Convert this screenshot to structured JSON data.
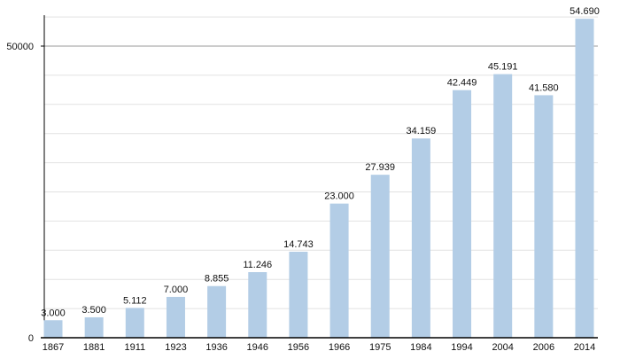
{
  "chart_data": {
    "type": "bar",
    "title": "",
    "xlabel": "",
    "ylabel": "",
    "ylim": [
      0,
      55000
    ],
    "grid": true,
    "grid_step": 5000,
    "y_tick_labels": [
      "0",
      "50000"
    ],
    "y_ticks": [
      0,
      50000
    ],
    "bar_color": "#b3cde6",
    "categories": [
      "1867",
      "1881",
      "1911",
      "1923",
      "1936",
      "1946",
      "1956",
      "1966",
      "1975",
      "1984",
      "1994",
      "2004",
      "2006",
      "2014"
    ],
    "values": [
      3000,
      3500,
      5112,
      7000,
      8855,
      11246,
      14743,
      23000,
      27939,
      34159,
      42449,
      45191,
      41580,
      54690
    ],
    "data_labels": [
      "3.000",
      "3.500",
      "5.112",
      "7.000",
      "8.855",
      "11.246",
      "14.743",
      "23.000",
      "27.939",
      "34.159",
      "42.449",
      "45.191",
      "41.580",
      "54.690"
    ]
  }
}
